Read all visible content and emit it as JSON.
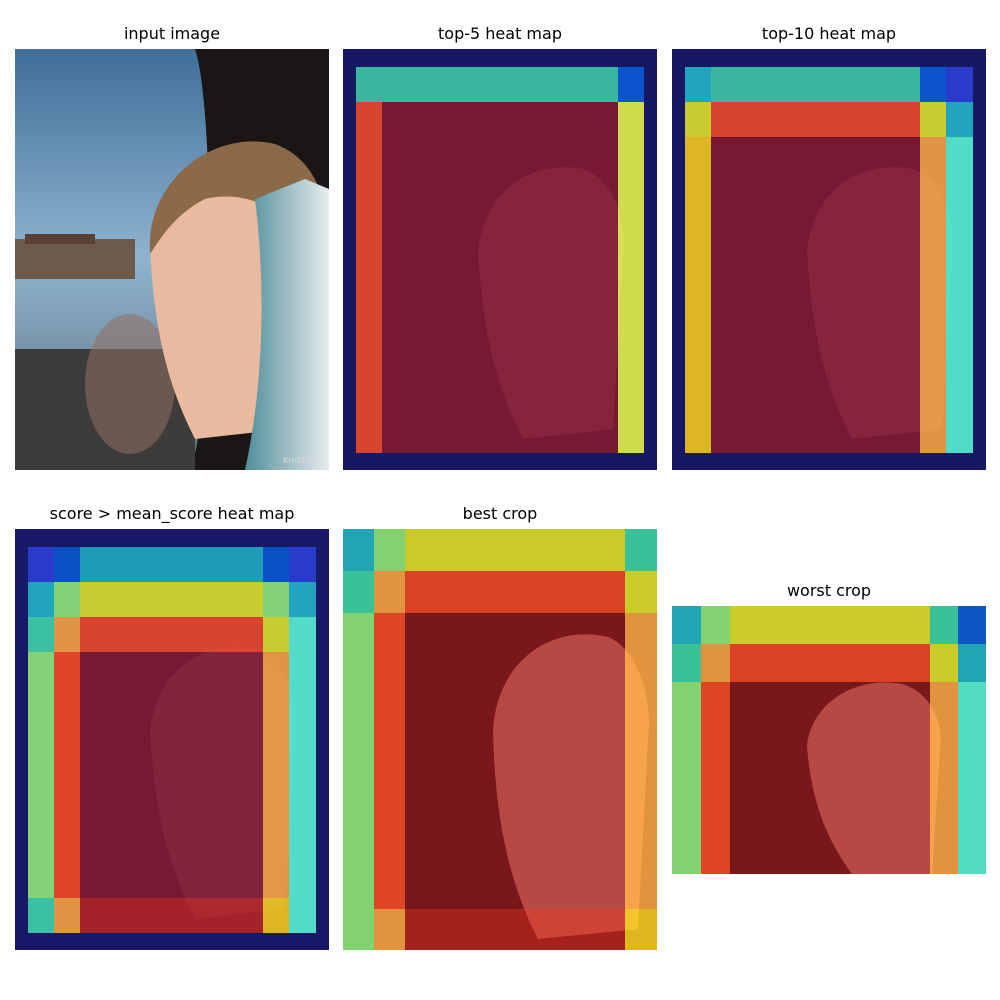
{
  "panels": {
    "input_image": {
      "title": "input image",
      "watermark": "KrisMohr"
    },
    "top5": {
      "title": "top-5 heat map"
    },
    "top10": {
      "title": "top-10 heat map"
    },
    "mean": {
      "title": "score > mean_score heat map"
    },
    "best": {
      "title": "best crop"
    },
    "worst": {
      "title": "worst crop"
    }
  },
  "colors": {
    "dark_navy": "#17197a",
    "blue": "#2b3fd6",
    "mid_blue": "#0a5bd6",
    "cyan": "#22b4c8",
    "teal": "#3fd4a8",
    "aqua": "#57f2d2",
    "green": "#8ee87a",
    "yellow": "#dde02a",
    "lime": "#e6f24a",
    "gold": "#f4c81e",
    "orange": "#f7a142",
    "red_orange": "#f44a25",
    "red": "#c8261c",
    "deep_red": "#a11a1e"
  }
}
